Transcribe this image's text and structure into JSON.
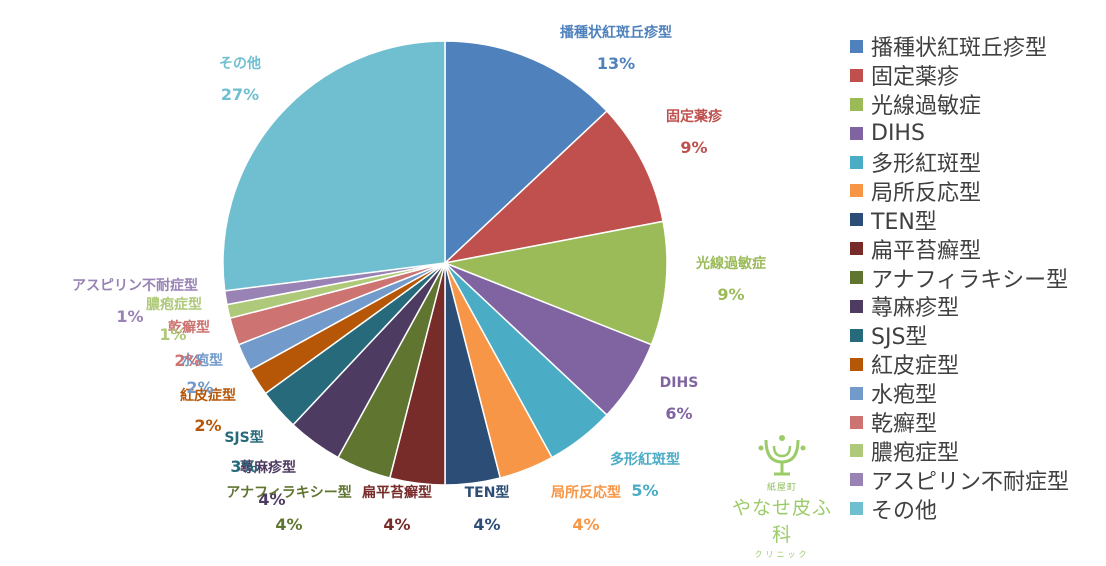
{
  "chart_data": {
    "type": "pie",
    "slices": [
      {
        "label": "播種状紅斑丘疹型",
        "value": 13,
        "pct": "13%",
        "color": "#4f81bd"
      },
      {
        "label": "固定薬疹",
        "value": 9,
        "pct": "9%",
        "color": "#c0504d"
      },
      {
        "label": "光線過敏症",
        "value": 9,
        "pct": "9%",
        "color": "#9bbb59"
      },
      {
        "label": "DIHS",
        "value": 6,
        "pct": "6%",
        "color": "#8064a2"
      },
      {
        "label": "多形紅斑型",
        "value": 5,
        "pct": "5%",
        "color": "#4bacc6"
      },
      {
        "label": "局所反応型",
        "value": 4,
        "pct": "4%",
        "color": "#f79646"
      },
      {
        "label": "TEN型",
        "value": 4,
        "pct": "4%",
        "color": "#2c4d75"
      },
      {
        "label": "扁平苔癬型",
        "value": 4,
        "pct": "4%",
        "color": "#772c2a"
      },
      {
        "label": "アナフィラキシー型",
        "value": 4,
        "pct": "4%",
        "color": "#5f7530"
      },
      {
        "label": "蕁麻疹型",
        "value": 4,
        "pct": "4%",
        "color": "#4d3b62"
      },
      {
        "label": "SJS型",
        "value": 3,
        "pct": "3%",
        "color": "#276a7c"
      },
      {
        "label": "紅皮症型",
        "value": 2,
        "pct": "2%",
        "color": "#b65708"
      },
      {
        "label": "水疱型",
        "value": 2,
        "pct": "2%",
        "color": "#729aca"
      },
      {
        "label": "乾癬型",
        "value": 2,
        "pct": "2%",
        "color": "#cd7371"
      },
      {
        "label": "膿疱症型",
        "value": 1,
        "pct": "1%",
        "color": "#afc97a"
      },
      {
        "label": "アスピリン不耐症型",
        "value": 1,
        "pct": "1%",
        "color": "#9983b5"
      },
      {
        "label": "その他",
        "value": 27,
        "pct": "27%",
        "color": "#6fbfd1"
      }
    ],
    "legend_position": "right"
  },
  "logo": {
    "sub": "紙屋町",
    "name": "やなせ皮ふ科",
    "kana": "クリニック",
    "color": "#9ccc6a"
  }
}
